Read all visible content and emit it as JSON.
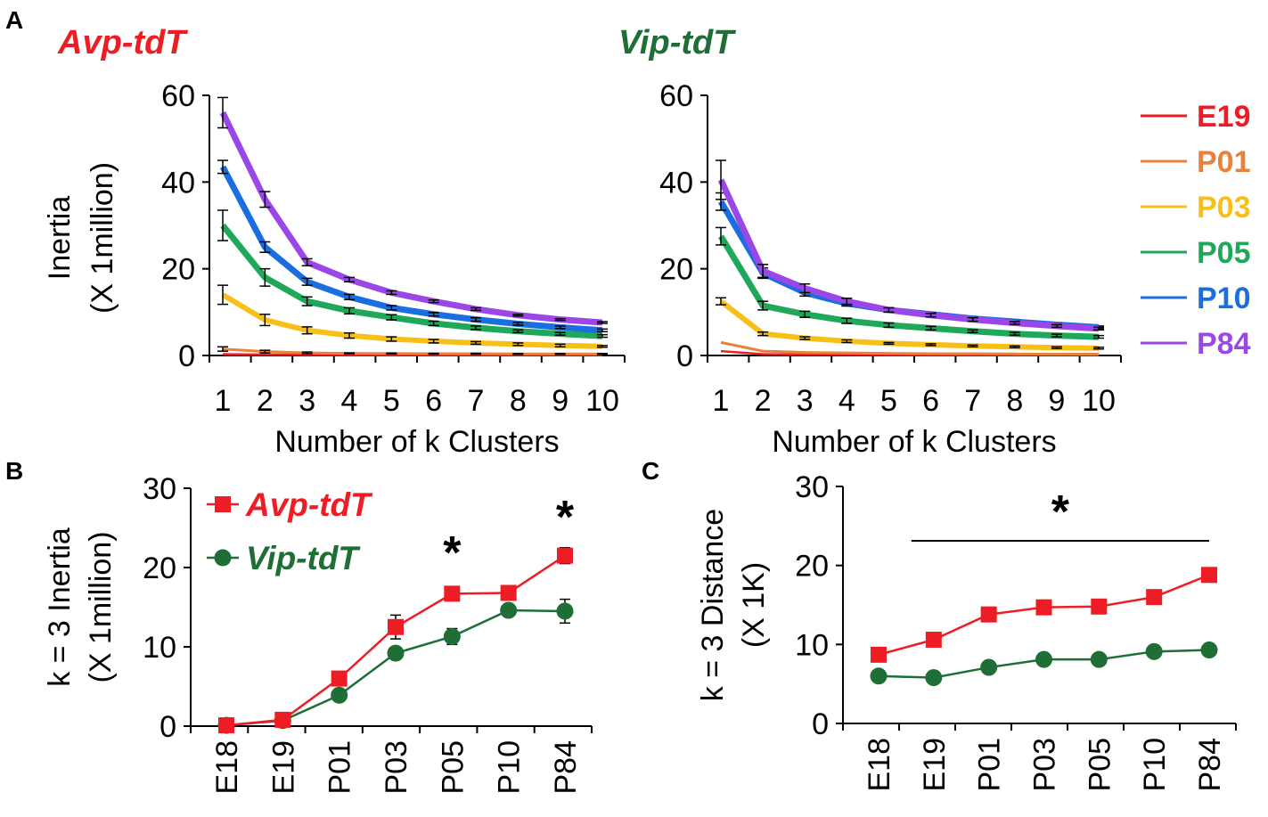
{
  "panel_letters": {
    "a": "A",
    "b": "B",
    "c": "C"
  },
  "colors": {
    "avp": "#ee1c24",
    "vip": "#1e6e36",
    "E19": "#ee1c24",
    "P01": "#e8823a",
    "P03": "#f8bf17",
    "P05": "#20a85a",
    "P10": "#1a6fe0",
    "P84": "#9b47e8",
    "axis": "#000000"
  },
  "chart_data": [
    {
      "id": "A-avp",
      "type": "line",
      "title": "Avp-tdT",
      "xlabel": "Number of k Clusters",
      "ylabel": [
        "Inertia",
        "(X 1million)"
      ],
      "x": [
        1,
        2,
        3,
        4,
        5,
        6,
        7,
        8,
        9,
        10
      ],
      "xticks": [
        "1",
        "2",
        "3",
        "4",
        "5",
        "6",
        "7",
        "8",
        "9",
        "10"
      ],
      "ylim": [
        0,
        60
      ],
      "yticks": [
        "0",
        "20",
        "40",
        "60"
      ],
      "series": [
        {
          "name": "E19",
          "values": [
            0.3,
            0.2,
            0.15,
            0.1,
            0.1,
            0.1,
            0.1,
            0.1,
            0.1,
            0.1
          ]
        },
        {
          "name": "P01",
          "values": [
            1.5,
            0.9,
            0.6,
            0.5,
            0.45,
            0.4,
            0.4,
            0.35,
            0.35,
            0.35
          ]
        },
        {
          "name": "P03",
          "values": [
            14,
            8.2,
            5.8,
            4.6,
            3.8,
            3.3,
            2.9,
            2.6,
            2.3,
            2.1
          ]
        },
        {
          "name": "P05",
          "values": [
            30,
            18,
            12.5,
            10.3,
            8.8,
            7.4,
            6.4,
            5.6,
            5,
            4.5
          ]
        },
        {
          "name": "P10",
          "values": [
            43.5,
            25,
            17,
            13.5,
            11,
            9.5,
            8.3,
            7.3,
            6.5,
            5.8
          ]
        },
        {
          "name": "P84",
          "values": [
            56,
            36,
            21.5,
            17.5,
            14.5,
            12.5,
            10.7,
            9.3,
            8.3,
            7.6
          ]
        }
      ],
      "error": {
        "P84": [
          3.5,
          1.8,
          0.8,
          0.5,
          0.4,
          0.3,
          0.3,
          0.2,
          0.2,
          0.2
        ],
        "P10": [
          1.5,
          1.2,
          0.8,
          0.6,
          0.5,
          0.4,
          0.4,
          0.3,
          0.3,
          0.3
        ],
        "P05": [
          3.5,
          2,
          1,
          0.7,
          0.6,
          0.5,
          0.4,
          0.3,
          0.3,
          0.3
        ],
        "P03": [
          2.2,
          1.3,
          0.8,
          0.6,
          0.5,
          0.4,
          0.3,
          0.3,
          0.3,
          0.2
        ],
        "P01": [
          0.5,
          0.3,
          0.2,
          0.1,
          0.1,
          0.1,
          0.1,
          0.1,
          0.1,
          0.1
        ]
      }
    },
    {
      "id": "A-vip",
      "type": "line",
      "title": "Vip-tdT",
      "xlabel": "Number of k Clusters",
      "ylabel": [],
      "x": [
        1,
        2,
        3,
        4,
        5,
        6,
        7,
        8,
        9,
        10
      ],
      "xticks": [
        "1",
        "2",
        "3",
        "4",
        "5",
        "6",
        "7",
        "8",
        "9",
        "10"
      ],
      "ylim": [
        0,
        60
      ],
      "yticks": [
        "0",
        "20",
        "40",
        "60"
      ],
      "series": [
        {
          "name": "E19",
          "values": [
            1,
            0.3,
            0.2,
            0.15,
            0.1,
            0.1,
            0.1,
            0.1,
            0.1,
            0.1
          ]
        },
        {
          "name": "P01",
          "values": [
            3,
            1,
            0.7,
            0.6,
            0.5,
            0.4,
            0.4,
            0.35,
            0.3,
            0.3
          ]
        },
        {
          "name": "P03",
          "values": [
            12.5,
            5,
            4,
            3.3,
            2.8,
            2.5,
            2.2,
            2,
            1.8,
            1.7
          ]
        },
        {
          "name": "P05",
          "values": [
            27.5,
            11.5,
            9.5,
            8,
            7,
            6.3,
            5.6,
            5,
            4.6,
            4.3
          ]
        },
        {
          "name": "P10",
          "values": [
            35.5,
            19,
            14.5,
            12,
            10.5,
            9.5,
            8.5,
            7.8,
            7.1,
            6.5
          ]
        },
        {
          "name": "P84",
          "values": [
            40.5,
            19.5,
            15.5,
            12.5,
            10.5,
            9.3,
            8.3,
            7.5,
            6.8,
            6.2
          ]
        }
      ],
      "error": {
        "P84": [
          4.5,
          1.5,
          1,
          0.7,
          0.5,
          0.4,
          0.4,
          0.3,
          0.3,
          0.3
        ],
        "P10": [
          2,
          1.2,
          0.8,
          0.6,
          0.5,
          0.4,
          0.4,
          0.3,
          0.3,
          0.3
        ],
        "P05": [
          2,
          1,
          0.7,
          0.6,
          0.5,
          0.4,
          0.3,
          0.3,
          0.3,
          0.3
        ],
        "P03": [
          0.8,
          0.4,
          0.3,
          0.3,
          0.2,
          0.2,
          0.2,
          0.2,
          0.2,
          0.2
        ]
      }
    },
    {
      "id": "B",
      "type": "line",
      "xlabel": "",
      "ylabel": [
        "k = 3 Inertia",
        "(X 1million)"
      ],
      "categories": [
        "E18",
        "E19",
        "P01",
        "P03",
        "P05",
        "P10",
        "P84"
      ],
      "ylim": [
        0,
        30
      ],
      "yticks": [
        "0",
        "10",
        "20",
        "30"
      ],
      "series": [
        {
          "name": "Avp-tdT",
          "values": [
            0.1,
            0.8,
            6,
            12.5,
            16.7,
            16.8,
            21.5
          ],
          "error": [
            0.2,
            0.3,
            0.7,
            1.5,
            0.5,
            0.4,
            1
          ]
        },
        {
          "name": "Vip-tdT",
          "values": [
            0.1,
            0.7,
            3.9,
            9.2,
            11.3,
            14.6,
            14.5
          ],
          "error": [
            0.1,
            0.2,
            0.4,
            0.6,
            1,
            0.7,
            1.5
          ]
        }
      ],
      "significance": [
        {
          "category": "P05",
          "label": "*"
        },
        {
          "category": "P84",
          "label": "*"
        }
      ]
    },
    {
      "id": "C",
      "type": "line",
      "xlabel": "",
      "ylabel": [
        "k = 3 Distance",
        "(X 1K)"
      ],
      "categories": [
        "E18",
        "E19",
        "P01",
        "P03",
        "P05",
        "P10",
        "P84"
      ],
      "ylim": [
        0,
        30
      ],
      "yticks": [
        "0",
        "10",
        "20",
        "30"
      ],
      "series": [
        {
          "name": "Avp-tdT",
          "values": [
            8.7,
            10.6,
            13.8,
            14.7,
            14.8,
            16,
            18.8
          ]
        },
        {
          "name": "Vip-tdT",
          "values": [
            6,
            5.8,
            7.1,
            8.1,
            8.1,
            9.1,
            9.3
          ]
        }
      ],
      "significance": [
        {
          "from": "E19",
          "to": "P84",
          "label": "*"
        }
      ]
    }
  ],
  "legend_a": [
    "E19",
    "P01",
    "P03",
    "P05",
    "P10",
    "P84"
  ],
  "legend_b": [
    {
      "label": "Avp-tdT",
      "marker": "square"
    },
    {
      "label": "Vip-tdT",
      "marker": "circle"
    }
  ]
}
